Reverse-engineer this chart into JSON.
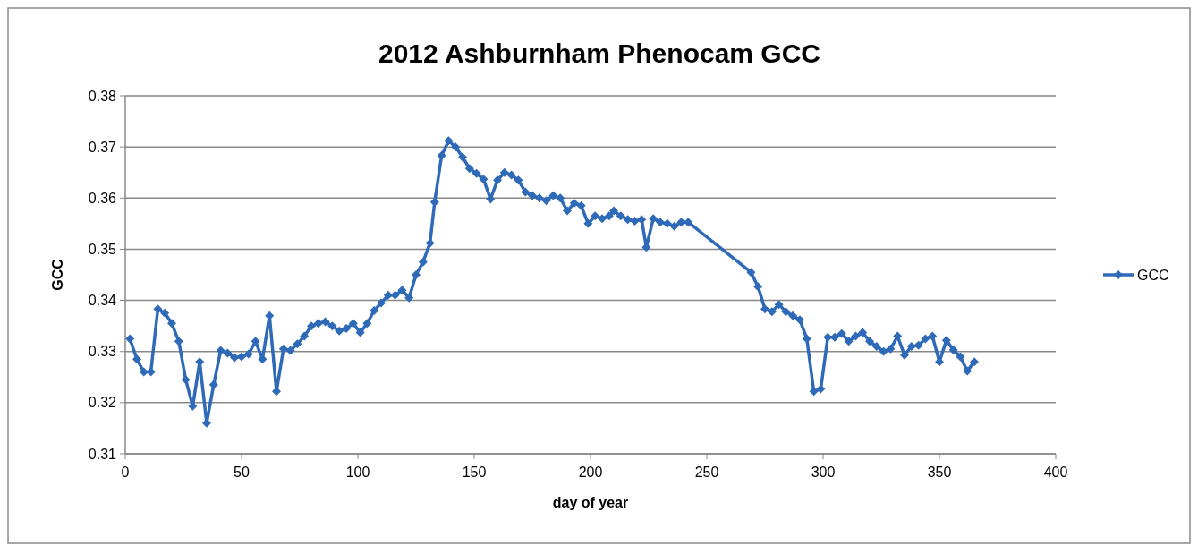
{
  "chart_data": {
    "type": "line",
    "title": "2012 Ashburnham Phenocam GCC",
    "xlabel": "day of year",
    "ylabel": "GCC",
    "xlim": [
      0,
      400
    ],
    "xticks": [
      0,
      50,
      100,
      150,
      200,
      250,
      300,
      350,
      400
    ],
    "ylim": [
      0.31,
      0.38
    ],
    "yticks": [
      0.31,
      0.32,
      0.33,
      0.34,
      0.35,
      0.36,
      0.37,
      0.38
    ],
    "grid": "y",
    "legend": "right",
    "marker": "diamond",
    "line_style": "solid",
    "series": [
      {
        "name": "GCC",
        "color": "#2e6ab8",
        "x": [
          2,
          5,
          8,
          11,
          14,
          17,
          20,
          23,
          26,
          29,
          32,
          35,
          38,
          41,
          44,
          47,
          50,
          53,
          56,
          59,
          62,
          65,
          68,
          71,
          74,
          77,
          80,
          83,
          86,
          89,
          92,
          95,
          98,
          101,
          104,
          107,
          110,
          113,
          116,
          119,
          122,
          125,
          128,
          131,
          133,
          136,
          139,
          142,
          145,
          148,
          151,
          154,
          157,
          160,
          163,
          166,
          169,
          172,
          175,
          178,
          181,
          184,
          187,
          190,
          193,
          196,
          199,
          202,
          205,
          208,
          210,
          213,
          216,
          219,
          222,
          224,
          227,
          230,
          233,
          236,
          239,
          242,
          269,
          272,
          275,
          278,
          281,
          284,
          287,
          290,
          293,
          296,
          299,
          302,
          305,
          308,
          311,
          314,
          317,
          320,
          323,
          326,
          329,
          332,
          335,
          338,
          341,
          344,
          347,
          350,
          353,
          356,
          359,
          362,
          365
        ],
        "values": [
          0.3325,
          0.3285,
          0.326,
          0.326,
          0.3383,
          0.3375,
          0.3355,
          0.332,
          0.3245,
          0.3193,
          0.328,
          0.316,
          0.3235,
          0.3302,
          0.3297,
          0.3288,
          0.329,
          0.3295,
          0.332,
          0.3285,
          0.337,
          0.3222,
          0.3305,
          0.3302,
          0.3315,
          0.333,
          0.335,
          0.3355,
          0.3358,
          0.335,
          0.334,
          0.3345,
          0.3355,
          0.3337,
          0.3355,
          0.338,
          0.3395,
          0.341,
          0.341,
          0.342,
          0.3405,
          0.345,
          0.3475,
          0.3512,
          0.3592,
          0.3683,
          0.3712,
          0.37,
          0.368,
          0.3658,
          0.3648,
          0.3637,
          0.3598,
          0.3635,
          0.365,
          0.3645,
          0.3635,
          0.3612,
          0.3605,
          0.36,
          0.3595,
          0.3605,
          0.36,
          0.3575,
          0.359,
          0.3585,
          0.355,
          0.3565,
          0.356,
          0.3565,
          0.3575,
          0.3565,
          0.3558,
          0.3555,
          0.3558,
          0.3504,
          0.356,
          0.3553,
          0.355,
          0.3545,
          0.3553,
          0.3553,
          0.3455,
          0.3427,
          0.3383,
          0.3378,
          0.3392,
          0.3378,
          0.337,
          0.3362,
          0.3325,
          0.3222,
          0.3227,
          0.3328,
          0.3328,
          0.3335,
          0.332,
          0.333,
          0.3337,
          0.332,
          0.331,
          0.33,
          0.3305,
          0.333,
          0.3293,
          0.331,
          0.3312,
          0.3325,
          0.333,
          0.328,
          0.3322,
          0.3303,
          0.329,
          0.3262,
          0.328
        ]
      }
    ]
  }
}
